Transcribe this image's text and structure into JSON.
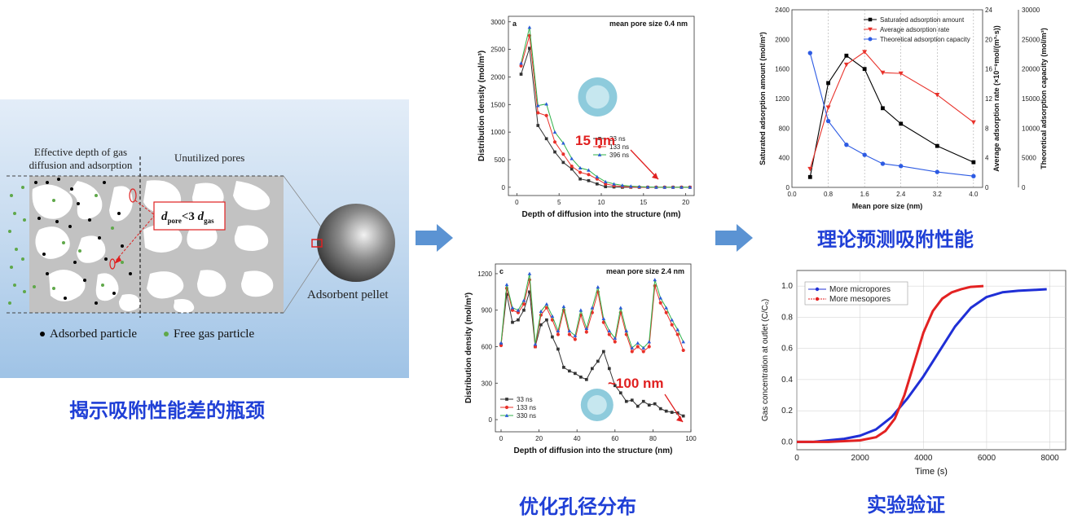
{
  "left_panel": {
    "effective_depth_label_line1": "Effective depth of gas",
    "effective_depth_label_line2": "diffusion and adsorption",
    "unutilized_label": "Unutilized pores",
    "formula_d": "d",
    "formula_pore": "pore",
    "formula_op": "<3 ",
    "formula_gas": "gas",
    "pellet_label": "Adsorbent pellet",
    "legend_adsorbed": "Adsorbed particle",
    "legend_free": "Free gas particle",
    "caption": "揭示吸附性能差的瓶颈",
    "colors": {
      "adsorbed": "#000000",
      "free": "#5fa84a",
      "pore_solid": "#c0c0c0",
      "background_top": "#dde9f6",
      "background_bottom": "#9fc3e6"
    }
  },
  "middle_panel": {
    "caption": "优化孔径分布",
    "chart_a": {
      "panel_letter": "a",
      "title": "mean pore size 0.4 nm",
      "annotation": "15 nm",
      "inset_color": "#8ecbdc"
    },
    "chart_c": {
      "panel_letter": "c",
      "title": "mean pore size 2.4 nm",
      "annotation": "~100 nm",
      "inset_color": "#8ecbdc"
    }
  },
  "right_panel": {
    "caption_top": "理论预测吸附性能",
    "caption_bottom": "实验验证"
  },
  "chart_data": [
    {
      "type": "line",
      "panel": "a",
      "xlabel": "Depth of diffusion into the structure (nm)",
      "ylabel": "Distribution density (mol/m³)",
      "xlim": [
        -1,
        21
      ],
      "ylim": [
        -150,
        3100
      ],
      "xticks": [
        0,
        5,
        10,
        15,
        20
      ],
      "yticks": [
        0,
        500,
        1000,
        1500,
        2000,
        2500,
        3000
      ],
      "x": [
        0.5,
        1.5,
        2.5,
        3.5,
        4.5,
        5.5,
        6.5,
        7.5,
        8.5,
        9.5,
        10.5,
        11.5,
        12.5,
        13.5,
        14.5,
        15.5,
        16.5,
        17.5,
        18.5,
        19.5,
        20.5
      ],
      "legend_position": "right",
      "series": [
        {
          "name": "33  ns",
          "color": "#333333",
          "marker": "square",
          "values": [
            2050,
            2520,
            1120,
            880,
            640,
            450,
            330,
            150,
            120,
            60,
            10,
            5,
            0,
            0,
            0,
            0,
            0,
            0,
            0,
            0,
            0
          ]
        },
        {
          "name": "133 ns",
          "color": "#e8312a",
          "marker": "circle",
          "values": [
            2200,
            2750,
            1350,
            1300,
            820,
            600,
            380,
            270,
            230,
            150,
            60,
            30,
            15,
            5,
            0,
            0,
            0,
            0,
            0,
            0,
            0
          ]
        },
        {
          "name": "396 ns",
          "color": "#2fb24a",
          "marker": "triangle",
          "color_marker": "#2a5bd7",
          "values": [
            2250,
            2900,
            1480,
            1510,
            1000,
            800,
            520,
            350,
            310,
            190,
            100,
            60,
            35,
            20,
            10,
            5,
            0,
            0,
            0,
            0,
            0
          ]
        }
      ]
    },
    {
      "type": "line",
      "panel": "c",
      "xlabel": "Depth of diffusion into the structure (nm)",
      "ylabel": "Distribution density (mol/m³)",
      "xlim": [
        -3,
        100
      ],
      "ylim": [
        -100,
        1280
      ],
      "xticks": [
        0,
        20,
        40,
        60,
        80,
        100
      ],
      "yticks": [
        0,
        300,
        600,
        900,
        1200
      ],
      "legend_position": "bottom-left",
      "x": [
        0,
        3,
        6,
        9,
        12,
        15,
        18,
        21,
        24,
        27,
        30,
        33,
        36,
        39,
        42,
        45,
        48,
        51,
        54,
        57,
        60,
        63,
        66,
        69,
        72,
        75,
        78,
        81,
        84,
        87,
        90,
        93,
        96
      ],
      "series": [
        {
          "name": "33  ns",
          "color": "#333333",
          "marker": "square",
          "values": [
            620,
            1030,
            800,
            820,
            900,
            1050,
            600,
            780,
            820,
            680,
            580,
            430,
            400,
            380,
            350,
            330,
            420,
            480,
            560,
            420,
            280,
            220,
            150,
            160,
            110,
            150,
            120,
            130,
            90,
            70,
            60,
            55,
            30
          ]
        },
        {
          "name": "133 ns",
          "color": "#e8312a",
          "marker": "circle",
          "values": [
            610,
            1080,
            900,
            880,
            950,
            1150,
            600,
            860,
            920,
            820,
            700,
            900,
            700,
            660,
            860,
            720,
            880,
            1050,
            800,
            700,
            640,
            880,
            700,
            560,
            600,
            560,
            600,
            1100,
            960,
            880,
            780,
            700,
            570
          ]
        },
        {
          "name": "330 ns",
          "color": "#2fb24a",
          "marker": "triangle",
          "color_marker": "#2a5bd7",
          "values": [
            630,
            1110,
            920,
            900,
            980,
            1200,
            620,
            890,
            950,
            850,
            730,
            930,
            730,
            690,
            900,
            750,
            920,
            1090,
            830,
            730,
            670,
            920,
            730,
            590,
            630,
            590,
            640,
            1150,
            1000,
            920,
            820,
            740,
            640
          ]
        }
      ]
    },
    {
      "type": "line",
      "panel": "theory",
      "xlabel": "Mean pore size (nm)",
      "ylabel_left": "Saturated adsorption amount (mol/m³)",
      "ylabel_right1": "Average adsorption rate (×10⁻⁹mol/(m³·s))",
      "ylabel_right2": "Theoretical adsorption capacity (mol/m³)",
      "xlim": [
        0,
        4.2
      ],
      "xticks": [
        0.0,
        0.8,
        1.6,
        2.4,
        3.2,
        4.0
      ],
      "ylim_left": [
        0,
        2400
      ],
      "yticks_left": [
        0,
        400,
        800,
        1200,
        1600,
        2000,
        2400
      ],
      "ylim_right1": [
        0,
        24
      ],
      "yticks_right1": [
        0,
        4,
        8,
        12,
        16,
        20,
        24
      ],
      "ylim_right2": [
        0,
        30000
      ],
      "yticks_right2": [
        0,
        5000,
        10000,
        15000,
        20000,
        25000,
        30000
      ],
      "legend_position": "top-right",
      "x": [
        0.4,
        0.8,
        1.2,
        1.6,
        2.0,
        2.4,
        3.2,
        4.0
      ],
      "series": [
        {
          "name": "Saturated adsorption amount",
          "color": "#000000",
          "marker": "square",
          "axis": "left",
          "values": [
            140,
            1410,
            1780,
            1600,
            1070,
            860,
            560,
            340
          ]
        },
        {
          "name": "Average adsorption rate",
          "color": "#e8312a",
          "marker": "triangle-down",
          "axis": "right1",
          "values": [
            2.5,
            10.8,
            16.6,
            18.3,
            15.5,
            15.4,
            12.5,
            8.8
          ]
        },
        {
          "name": "Theoretical adsorption capacity",
          "color": "#2d5be3",
          "marker": "circle",
          "axis": "right2",
          "values": [
            22700,
            11200,
            7200,
            5500,
            4000,
            3600,
            2600,
            1900
          ]
        }
      ]
    },
    {
      "type": "line",
      "panel": "experiment",
      "xlabel": "Time (s)",
      "ylabel": "Gas concentration at outlet (C/C₀)",
      "xlim": [
        0,
        8500
      ],
      "ylim": [
        -0.05,
        1.1
      ],
      "xticks": [
        0,
        2000,
        4000,
        6000,
        8000
      ],
      "yticks": [
        0.0,
        0.2,
        0.4,
        0.6,
        0.8,
        1.0
      ],
      "legend_position": "top-left",
      "series": [
        {
          "name": "More micropores",
          "color": "#1f2fd6",
          "x": [
            0,
            500,
            1000,
            1500,
            2000,
            2500,
            3000,
            3500,
            4000,
            4500,
            5000,
            5500,
            6000,
            6500,
            7000,
            7500,
            7900
          ],
          "values": [
            0,
            0,
            0.01,
            0.02,
            0.04,
            0.08,
            0.16,
            0.28,
            0.42,
            0.58,
            0.74,
            0.86,
            0.93,
            0.96,
            0.97,
            0.975,
            0.98
          ]
        },
        {
          "name": "More mesopores",
          "color": "#e32222",
          "x": [
            0,
            500,
            1000,
            1500,
            2000,
            2500,
            2800,
            3100,
            3400,
            3700,
            4000,
            4300,
            4600,
            4900,
            5200,
            5500,
            5900
          ],
          "values": [
            0,
            0,
            0,
            0.005,
            0.01,
            0.03,
            0.07,
            0.15,
            0.3,
            0.5,
            0.7,
            0.84,
            0.92,
            0.96,
            0.98,
            0.995,
            1.0
          ]
        }
      ]
    }
  ]
}
